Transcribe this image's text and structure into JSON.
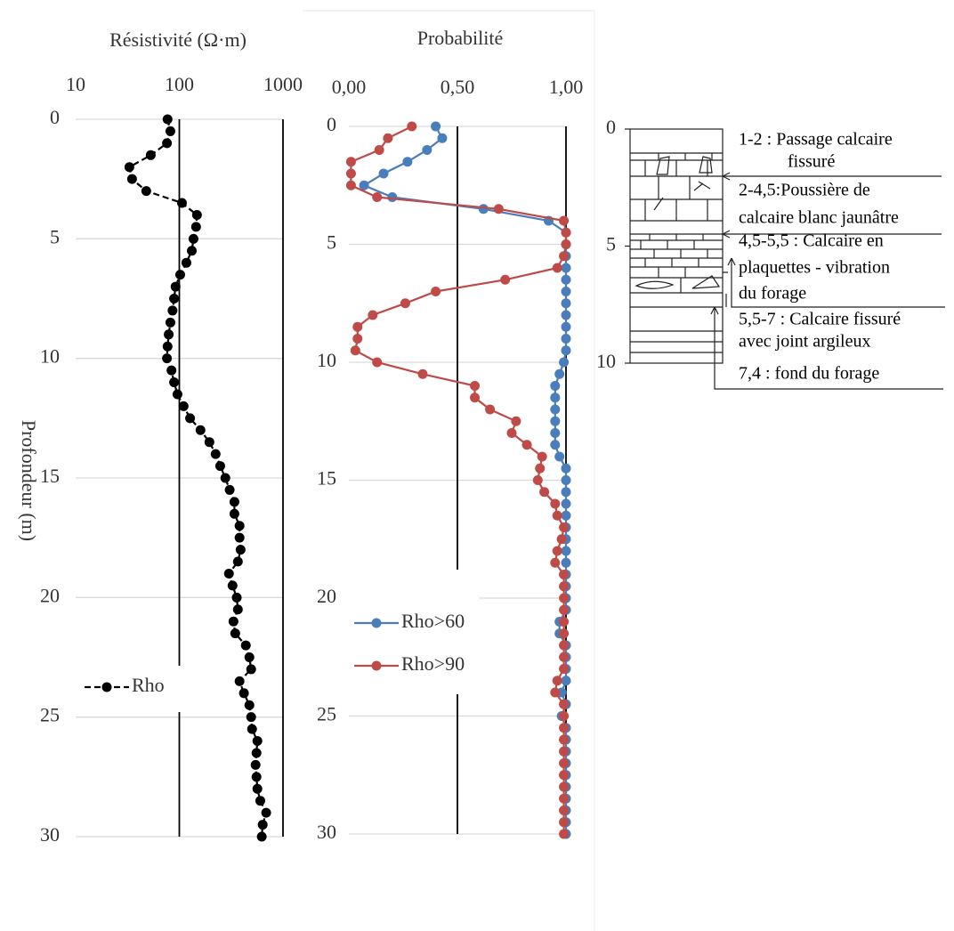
{
  "chart_data": [
    {
      "type": "line",
      "title": "Résistivité (Ω·m)",
      "ylabel": "Profondeur (m)",
      "xscale": "log",
      "xlim": [
        10,
        1000
      ],
      "xticks": [
        10,
        100,
        1000
      ],
      "ylim": [
        0,
        30
      ],
      "yticks": [
        0,
        5,
        10,
        15,
        20,
        25,
        30
      ],
      "y_inverted": true,
      "grid": true,
      "legend": "lower left",
      "depths": [
        0,
        0.5,
        1,
        1.5,
        2,
        2.5,
        3,
        3.5,
        4,
        4.5,
        5,
        5.5,
        6,
        6.5,
        7,
        7.5,
        8,
        8.5,
        9,
        9.5,
        10,
        10.5,
        11,
        11.5,
        12,
        12.5,
        13,
        13.5,
        14,
        14.5,
        15,
        15.5,
        16,
        16.5,
        17,
        17.5,
        18,
        18.5,
        19,
        19.5,
        20,
        20.5,
        21,
        21.5,
        22,
        22.5,
        23,
        23.5,
        24,
        24.5,
        25,
        25.5,
        26,
        26.5,
        27,
        27.5,
        28,
        28.5,
        29,
        29.5,
        30
      ],
      "series": [
        {
          "name": "Rho",
          "color": "#000000",
          "line_style": "dashed",
          "values": [
            77,
            82,
            76,
            53,
            33,
            35,
            48,
            106,
            148,
            145,
            137,
            132,
            117,
            102,
            92,
            89,
            86,
            82,
            79,
            77,
            76,
            84,
            89,
            96,
            110,
            127,
            160,
            195,
            224,
            248,
            278,
            306,
            340,
            340,
            381,
            381,
            390,
            367,
            301,
            326,
            358,
            367,
            333,
            346,
            438,
            474,
            493,
            381,
            420,
            474,
            493,
            503,
            566,
            555,
            544,
            555,
            566,
            604,
            688,
            637,
            624
          ]
        }
      ]
    },
    {
      "type": "line",
      "title": "Probabilité",
      "xlim": [
        0,
        1
      ],
      "xticks": [
        {
          "value": 0,
          "label": "0,00"
        },
        {
          "value": 0.5,
          "label": "0,50"
        },
        {
          "value": 1,
          "label": "1,00"
        }
      ],
      "ylim": [
        0,
        30
      ],
      "yticks": [
        0,
        5,
        10,
        15,
        20,
        25,
        30
      ],
      "y_inverted": true,
      "grid": true,
      "legend": "lower left",
      "depths": [
        0,
        0.5,
        1,
        1.5,
        2,
        2.5,
        3,
        3.5,
        4,
        4.5,
        5,
        5.5,
        6,
        6.5,
        7,
        7.5,
        8,
        8.5,
        9,
        9.5,
        10,
        10.5,
        11,
        11.5,
        12,
        12.5,
        13,
        13.5,
        14,
        14.5,
        15,
        15.5,
        16,
        16.5,
        17,
        17.5,
        18,
        18.5,
        19,
        19.5,
        20,
        20.5,
        21,
        21.5,
        22,
        22.5,
        23,
        23.5,
        24,
        24.5,
        25,
        25.5,
        26,
        26.5,
        27,
        27.5,
        28,
        28.5,
        29,
        29.5,
        30
      ],
      "series": [
        {
          "name": "Rho>60",
          "color": "#4a7ebb",
          "line_style": "solid",
          "values": [
            0.4,
            0.43,
            0.36,
            0.27,
            0.16,
            0.07,
            0.2,
            0.62,
            0.92,
            1.0,
            1.0,
            1.0,
            1.0,
            1.0,
            1.0,
            1.0,
            1.0,
            1.0,
            1.0,
            1.0,
            0.99,
            0.97,
            0.95,
            0.95,
            0.95,
            0.95,
            0.95,
            0.95,
            0.97,
            1.0,
            1.0,
            1.0,
            1.0,
            1.0,
            1.0,
            1.0,
            1.0,
            1.0,
            1.0,
            1.0,
            1.0,
            1.0,
            0.97,
            0.97,
            1.0,
            1.0,
            1.0,
            1.0,
            0.98,
            1.0,
            0.98,
            1.0,
            1.0,
            1.0,
            1.0,
            1.0,
            1.0,
            1.0,
            1.0,
            1.0,
            1.0
          ]
        },
        {
          "name": "Rho>90",
          "color": "#be4b48",
          "line_style": "solid",
          "values": [
            0.29,
            0.18,
            0.14,
            0.01,
            0.01,
            0.01,
            0.13,
            0.69,
            0.99,
            1.0,
            1.0,
            0.99,
            0.96,
            0.72,
            0.4,
            0.26,
            0.11,
            0.04,
            0.04,
            0.03,
            0.13,
            0.34,
            0.58,
            0.58,
            0.65,
            0.77,
            0.75,
            0.82,
            0.89,
            0.88,
            0.87,
            0.9,
            0.95,
            0.96,
            0.99,
            0.98,
            0.96,
            0.95,
            0.99,
            0.99,
            0.99,
            0.99,
            0.99,
            0.99,
            0.99,
            0.99,
            0.99,
            0.96,
            0.95,
            0.99,
            0.99,
            0.99,
            0.99,
            0.99,
            0.99,
            0.99,
            0.99,
            0.99,
            0.99,
            0.99,
            0.99
          ]
        }
      ]
    }
  ],
  "lithology": {
    "ylim": [
      0,
      10
    ],
    "yticks": [
      0,
      5,
      10
    ],
    "labels": [
      {
        "lines": [
          "1-2 : Passage calcaire",
          "fissuré"
        ]
      },
      {
        "lines": [
          "2-4,5:Poussière de",
          "calcaire blanc jaunâtre"
        ]
      },
      {
        "lines": [
          "4,5-5,5 : Calcaire en",
          "plaquettes - vibration",
          "du forage"
        ]
      },
      {
        "lines": [
          "5,5-7 : Calcaire fissuré",
          "avec joint argileux"
        ]
      },
      {
        "lines": [
          "7,4 : fond du forage"
        ]
      }
    ]
  }
}
